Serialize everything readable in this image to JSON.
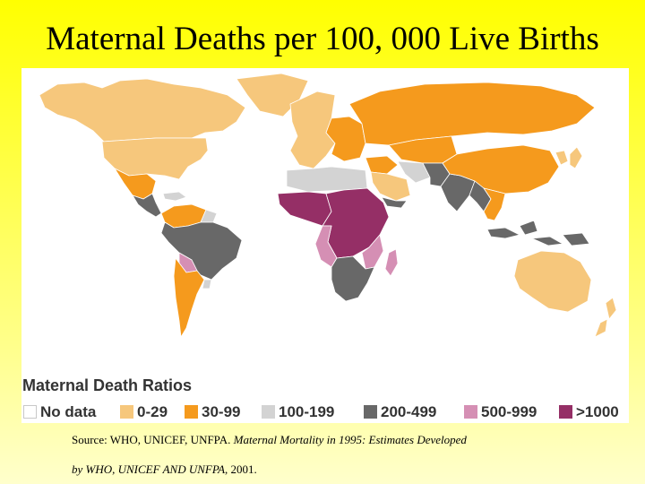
{
  "slide": {
    "title": "Maternal Deaths per 100, 000 Live Births"
  },
  "legend": {
    "title": "Maternal Death Ratios",
    "items": [
      {
        "label": "No data",
        "color": "#ffffff"
      },
      {
        "label": "0-29",
        "color": "#f6c77c"
      },
      {
        "label": "30-99",
        "color": "#f59a1d"
      },
      {
        "label": "100-199",
        "color": "#d3d3d3"
      },
      {
        "label": "200-499",
        "color": "#686868"
      },
      {
        "label": "500-999",
        "color": "#d58fb4"
      },
      {
        "label": ">1000",
        "color": "#952f66"
      }
    ]
  },
  "source": {
    "prefix": "Source: WHO, UNICEF, UNFPA. ",
    "publication_part1": "Maternal Mortality in 1995: Estimates Developed",
    "publication_part2": "by WHO, UNICEF AND UNFPA",
    "suffix": ", 2001."
  },
  "map": {
    "regions": [
      {
        "name": "canada-alaska",
        "level": "0-29"
      },
      {
        "name": "usa",
        "level": "0-29"
      },
      {
        "name": "greenland",
        "level": "0-29"
      },
      {
        "name": "mexico",
        "level": "30-99"
      },
      {
        "name": "central-america",
        "level": "200-499"
      },
      {
        "name": "caribbean",
        "level": "100-199"
      },
      {
        "name": "colombia-venezuela",
        "level": "30-99"
      },
      {
        "name": "guyana",
        "level": "100-199"
      },
      {
        "name": "brazil-andes",
        "level": "200-499"
      },
      {
        "name": "bolivia",
        "level": "500-999"
      },
      {
        "name": "southern-cone",
        "level": "30-99"
      },
      {
        "name": "uruguay",
        "level": "100-199"
      },
      {
        "name": "western-europe",
        "level": "0-29"
      },
      {
        "name": "eastern-europe",
        "level": "30-99"
      },
      {
        "name": "russia",
        "level": "30-99"
      },
      {
        "name": "central-asia",
        "level": "30-99"
      },
      {
        "name": "north-africa",
        "level": "100-199"
      },
      {
        "name": "middle-east",
        "level": "30-99"
      },
      {
        "name": "saudi-arabia",
        "level": "0-29"
      },
      {
        "name": "yemen",
        "level": "200-499"
      },
      {
        "name": "iran",
        "level": "100-199"
      },
      {
        "name": "afghanistan-pakistan",
        "level": "200-499"
      },
      {
        "name": "india",
        "level": "200-499"
      },
      {
        "name": "china",
        "level": "30-99"
      },
      {
        "name": "japan-korea",
        "level": "0-29"
      },
      {
        "name": "southeast-asia",
        "level": "200-499"
      },
      {
        "name": "thailand-vietnam",
        "level": "30-99"
      },
      {
        "name": "indonesia-png",
        "level": "200-499"
      },
      {
        "name": "west-africa",
        "level": ">1000"
      },
      {
        "name": "sahel-central-east-africa",
        "level": ">1000"
      },
      {
        "name": "central-africa-mixed",
        "level": "500-999"
      },
      {
        "name": "southern-africa",
        "level": "200-499"
      },
      {
        "name": "madagascar",
        "level": "500-999"
      },
      {
        "name": "australia",
        "level": "0-29"
      },
      {
        "name": "new-zealand",
        "level": "0-29"
      }
    ]
  }
}
